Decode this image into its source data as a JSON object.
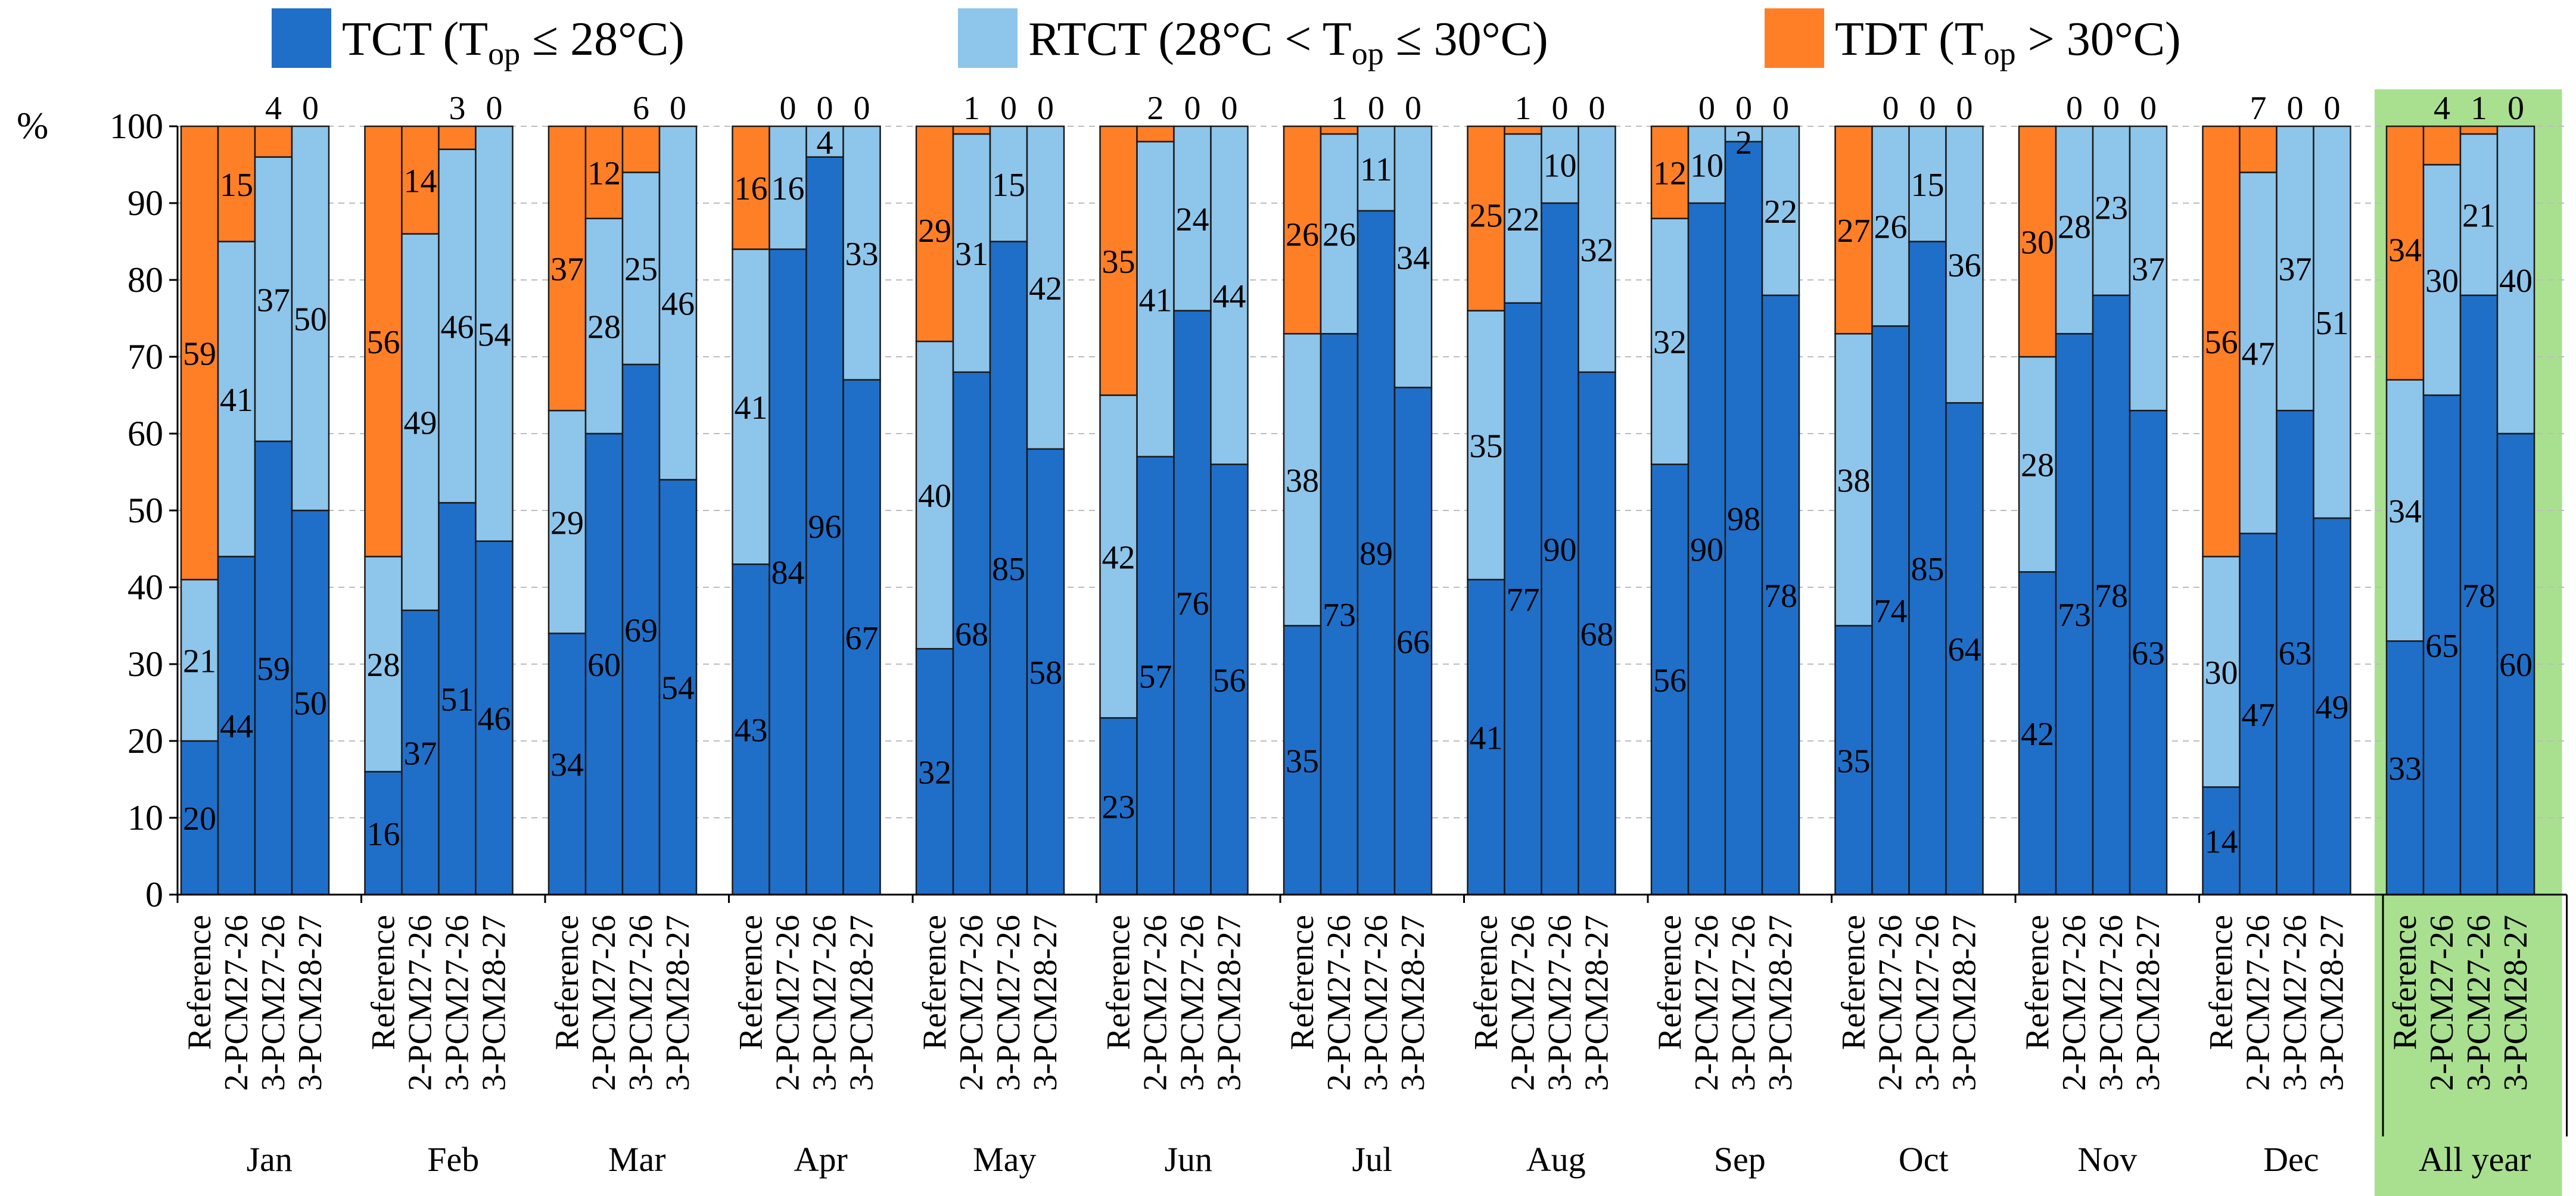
{
  "chart_data": {
    "type": "bar",
    "stacked": true,
    "ylabel": "%",
    "ylim": [
      0,
      100
    ],
    "yticks": [
      0,
      10,
      20,
      30,
      40,
      50,
      60,
      70,
      80,
      90,
      100
    ],
    "grid": true,
    "legend_position": "top",
    "legend": [
      {
        "key": "tct",
        "base": "TCT (T",
        "sub": "op",
        "tail": " ≤ 28°C)",
        "color": "#1f6fc9"
      },
      {
        "key": "rtct",
        "base": "RTCT (28°C < T",
        "sub": "op",
        "tail": " ≤ 30°C)",
        "color": "#8ec5ea"
      },
      {
        "key": "tdt",
        "base": "TDT (T",
        "sub": "op",
        "tail": " > 30°C)",
        "color": "#ff7f27"
      }
    ],
    "colors": {
      "tct": "#1f6fc9",
      "rtct": "#8ec5ea",
      "tdt": "#ff7f27",
      "highlight": "#a8e090"
    },
    "cases": [
      "Reference",
      "2-PCM27-26",
      "3-PCM27-26",
      "3-PCM28-27"
    ],
    "highlight_group": "All year",
    "groups": [
      {
        "name": "Jan",
        "tct": [
          20,
          44,
          59,
          50
        ],
        "rtct": [
          21,
          41,
          37,
          50
        ],
        "tdt": [
          59,
          15,
          4,
          0
        ]
      },
      {
        "name": "Feb",
        "tct": [
          16,
          37,
          51,
          46
        ],
        "rtct": [
          28,
          49,
          46,
          54
        ],
        "tdt": [
          56,
          14,
          3,
          0
        ]
      },
      {
        "name": "Mar",
        "tct": [
          34,
          60,
          69,
          54
        ],
        "rtct": [
          29,
          28,
          25,
          46
        ],
        "tdt": [
          37,
          12,
          6,
          0
        ]
      },
      {
        "name": "Apr",
        "tct": [
          43,
          84,
          96,
          67
        ],
        "rtct": [
          41,
          16,
          4,
          33
        ],
        "tdt": [
          16,
          0,
          0,
          0
        ]
      },
      {
        "name": "May",
        "tct": [
          32,
          68,
          85,
          58
        ],
        "rtct": [
          40,
          31,
          15,
          42
        ],
        "tdt": [
          29,
          1,
          0,
          0
        ]
      },
      {
        "name": "Jun",
        "tct": [
          23,
          57,
          76,
          56
        ],
        "rtct": [
          42,
          41,
          24,
          44
        ],
        "tdt": [
          35,
          2,
          0,
          0
        ]
      },
      {
        "name": "Jul",
        "tct": [
          35,
          73,
          89,
          66
        ],
        "rtct": [
          38,
          26,
          11,
          34
        ],
        "tdt": [
          26,
          1,
          0,
          0
        ]
      },
      {
        "name": "Aug",
        "tct": [
          41,
          77,
          90,
          68
        ],
        "rtct": [
          35,
          22,
          10,
          32
        ],
        "tdt": [
          25,
          1,
          0,
          0
        ]
      },
      {
        "name": "Sep",
        "tct": [
          56,
          90,
          98,
          78
        ],
        "rtct": [
          32,
          10,
          2,
          22
        ],
        "tdt": [
          12,
          0,
          0,
          0
        ]
      },
      {
        "name": "Oct",
        "tct": [
          35,
          74,
          85,
          64
        ],
        "rtct": [
          38,
          26,
          15,
          36
        ],
        "tdt": [
          27,
          0,
          0,
          0
        ]
      },
      {
        "name": "Nov",
        "tct": [
          42,
          73,
          78,
          63
        ],
        "rtct": [
          28,
          28,
          23,
          37
        ],
        "tdt": [
          30,
          0,
          0,
          0
        ]
      },
      {
        "name": "Dec",
        "tct": [
          14,
          47,
          63,
          49
        ],
        "rtct": [
          30,
          47,
          37,
          51
        ],
        "tdt": [
          56,
          7,
          0,
          0
        ]
      },
      {
        "name": "All year",
        "tct": [
          33,
          65,
          78,
          60
        ],
        "rtct": [
          34,
          30,
          21,
          40
        ],
        "tdt": [
          34,
          4,
          1,
          0
        ]
      }
    ],
    "label_rules": {
      "tct": "shown for every bar",
      "rtct": "shown when tdt > 0 or tct < 100",
      "tdt": "shown for non-reference bars above the bar top; reference bars inside"
    }
  }
}
